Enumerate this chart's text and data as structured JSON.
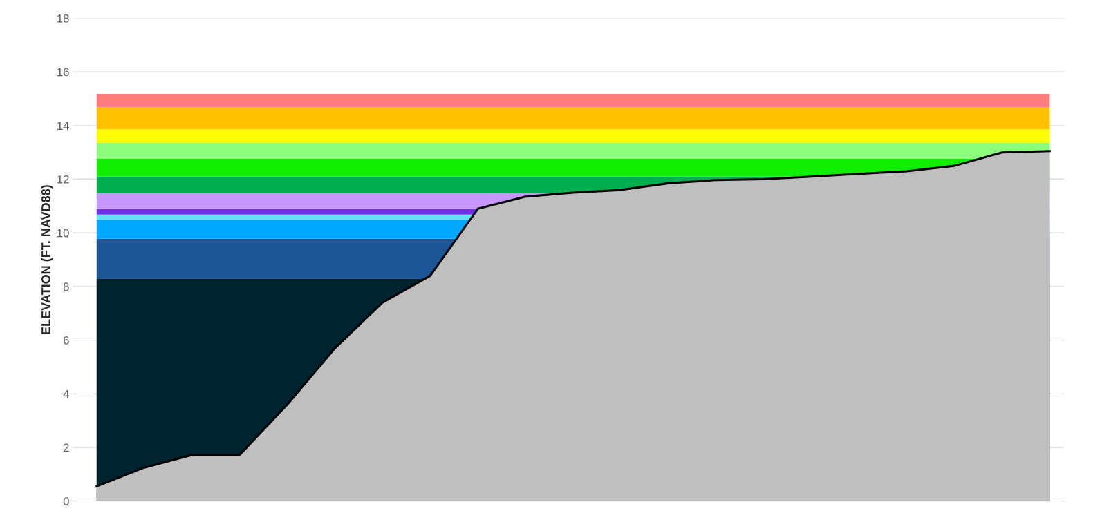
{
  "chart_data": {
    "type": "area",
    "ylabel": "ELEVATION (FT. NAVD88)",
    "categories": [
      null,
      null,
      null,
      null,
      null,
      null,
      null,
      null,
      null,
      null,
      null,
      null,
      null,
      null,
      null,
      null,
      null,
      null,
      null,
      null,
      null
    ],
    "series": [
      {
        "color": "#bfbfbf",
        "values": [
          0.55,
          1.25,
          1.72,
          1.72,
          3.6,
          5.7,
          7.4,
          8.4,
          10.9,
          11.35,
          11.5,
          11.6,
          11.85,
          11.97,
          12.0,
          12.1,
          12.2,
          12.3,
          12.5,
          13.0,
          13.05
        ]
      }
    ],
    "bands": [
      {
        "axis": "y",
        "from": 0,
        "to": 8.28,
        "color": "#002330"
      },
      {
        "axis": "y",
        "from": 8.28,
        "to": 9.78,
        "color": "#1c5494"
      },
      {
        "axis": "y",
        "from": 9.78,
        "to": 10.49,
        "color": "#00a8ff"
      },
      {
        "axis": "y",
        "from": 10.49,
        "to": 10.68,
        "color": "#66e0ff"
      },
      {
        "axis": "y",
        "from": 10.68,
        "to": 10.89,
        "color": "#7030e8"
      },
      {
        "axis": "y",
        "from": 10.89,
        "to": 11.47,
        "color": "#c896ff"
      },
      {
        "axis": "y",
        "from": 11.47,
        "to": 12.1,
        "color": "#00b050"
      },
      {
        "axis": "y",
        "from": 12.1,
        "to": 12.76,
        "color": "#10ee00"
      },
      {
        "axis": "y",
        "from": 12.76,
        "to": 13.36,
        "color": "#8cfc7c"
      },
      {
        "axis": "y",
        "from": 13.36,
        "to": 13.86,
        "color": "#ffff00"
      },
      {
        "axis": "y",
        "from": 13.86,
        "to": 14.68,
        "color": "#ffc000"
      },
      {
        "axis": "y",
        "from": 14.68,
        "to": 15.18,
        "color": "#ff7c7c"
      }
    ],
    "ylim": [
      0,
      18
    ],
    "yticks": [
      0,
      2,
      4,
      6,
      8,
      10,
      12,
      14,
      16,
      18
    ],
    "grid": "y",
    "legend": false
  }
}
